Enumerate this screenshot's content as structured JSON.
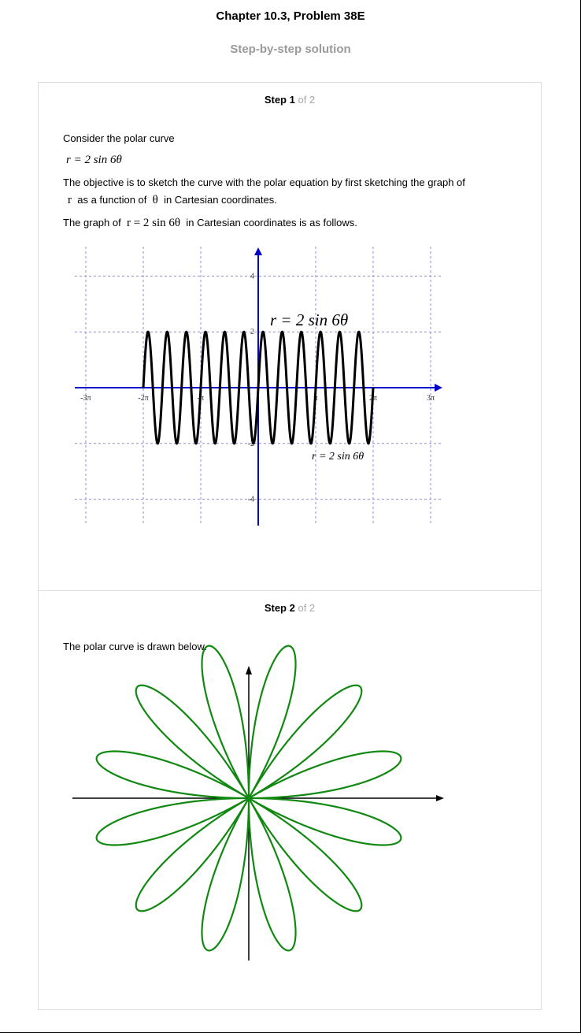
{
  "page": {
    "title": "Chapter 10.3, Problem 38E",
    "subtitle": "Step-by-step solution"
  },
  "step1": {
    "label_bold": "Step 1",
    "label_rest": "of 2",
    "intro": "Consider the polar curve",
    "equation": "r = 2 sin 6θ",
    "objective_a": "The objective is to sketch the curve with the polar equation by first sketching the graph of",
    "objective_b_var1": "r",
    "objective_b_mid": "as a function of",
    "objective_b_var2": "θ",
    "objective_b_end": "in Cartesian coordinates.",
    "graph_intro_a": "The graph of",
    "graph_intro_eq": "r = 2 sin 6θ",
    "graph_intro_b": "in Cartesian coordinates is as follows."
  },
  "step2": {
    "label_bold": "Step 2",
    "label_rest": "of 2",
    "text": "The polar curve is drawn below."
  },
  "chart_data": [
    {
      "type": "line",
      "function": "r = 2 sin 6θ",
      "x_range": [
        -6.2832,
        6.2832
      ],
      "xlim": [
        -9.42,
        9.42
      ],
      "ylim": [
        -4.5,
        4.5
      ],
      "x_tick_labels": [
        "-3π",
        "-2π",
        "-π",
        "π",
        "2π",
        "3π"
      ],
      "x_tick_values": [
        -9.4248,
        -6.2832,
        -3.1416,
        3.1416,
        6.2832,
        9.4248
      ],
      "y_tick_labels": [
        "4",
        "2",
        "-2",
        "-4"
      ],
      "y_tick_values": [
        4,
        2,
        -2,
        -4
      ],
      "annotations": [
        "r = 2 sin 6θ",
        "r = 2 sin 6θ"
      ],
      "grid": true,
      "colors": {
        "curve": "#000000",
        "axes": "#0000cc",
        "grid": "#8c8ce6"
      }
    },
    {
      "type": "line",
      "polar": true,
      "function": "r = 2 sin 6θ",
      "theta_range": [
        0,
        6.2832
      ],
      "petals": 12,
      "colors": {
        "curve": "#118811",
        "axes": "#000000"
      }
    }
  ]
}
